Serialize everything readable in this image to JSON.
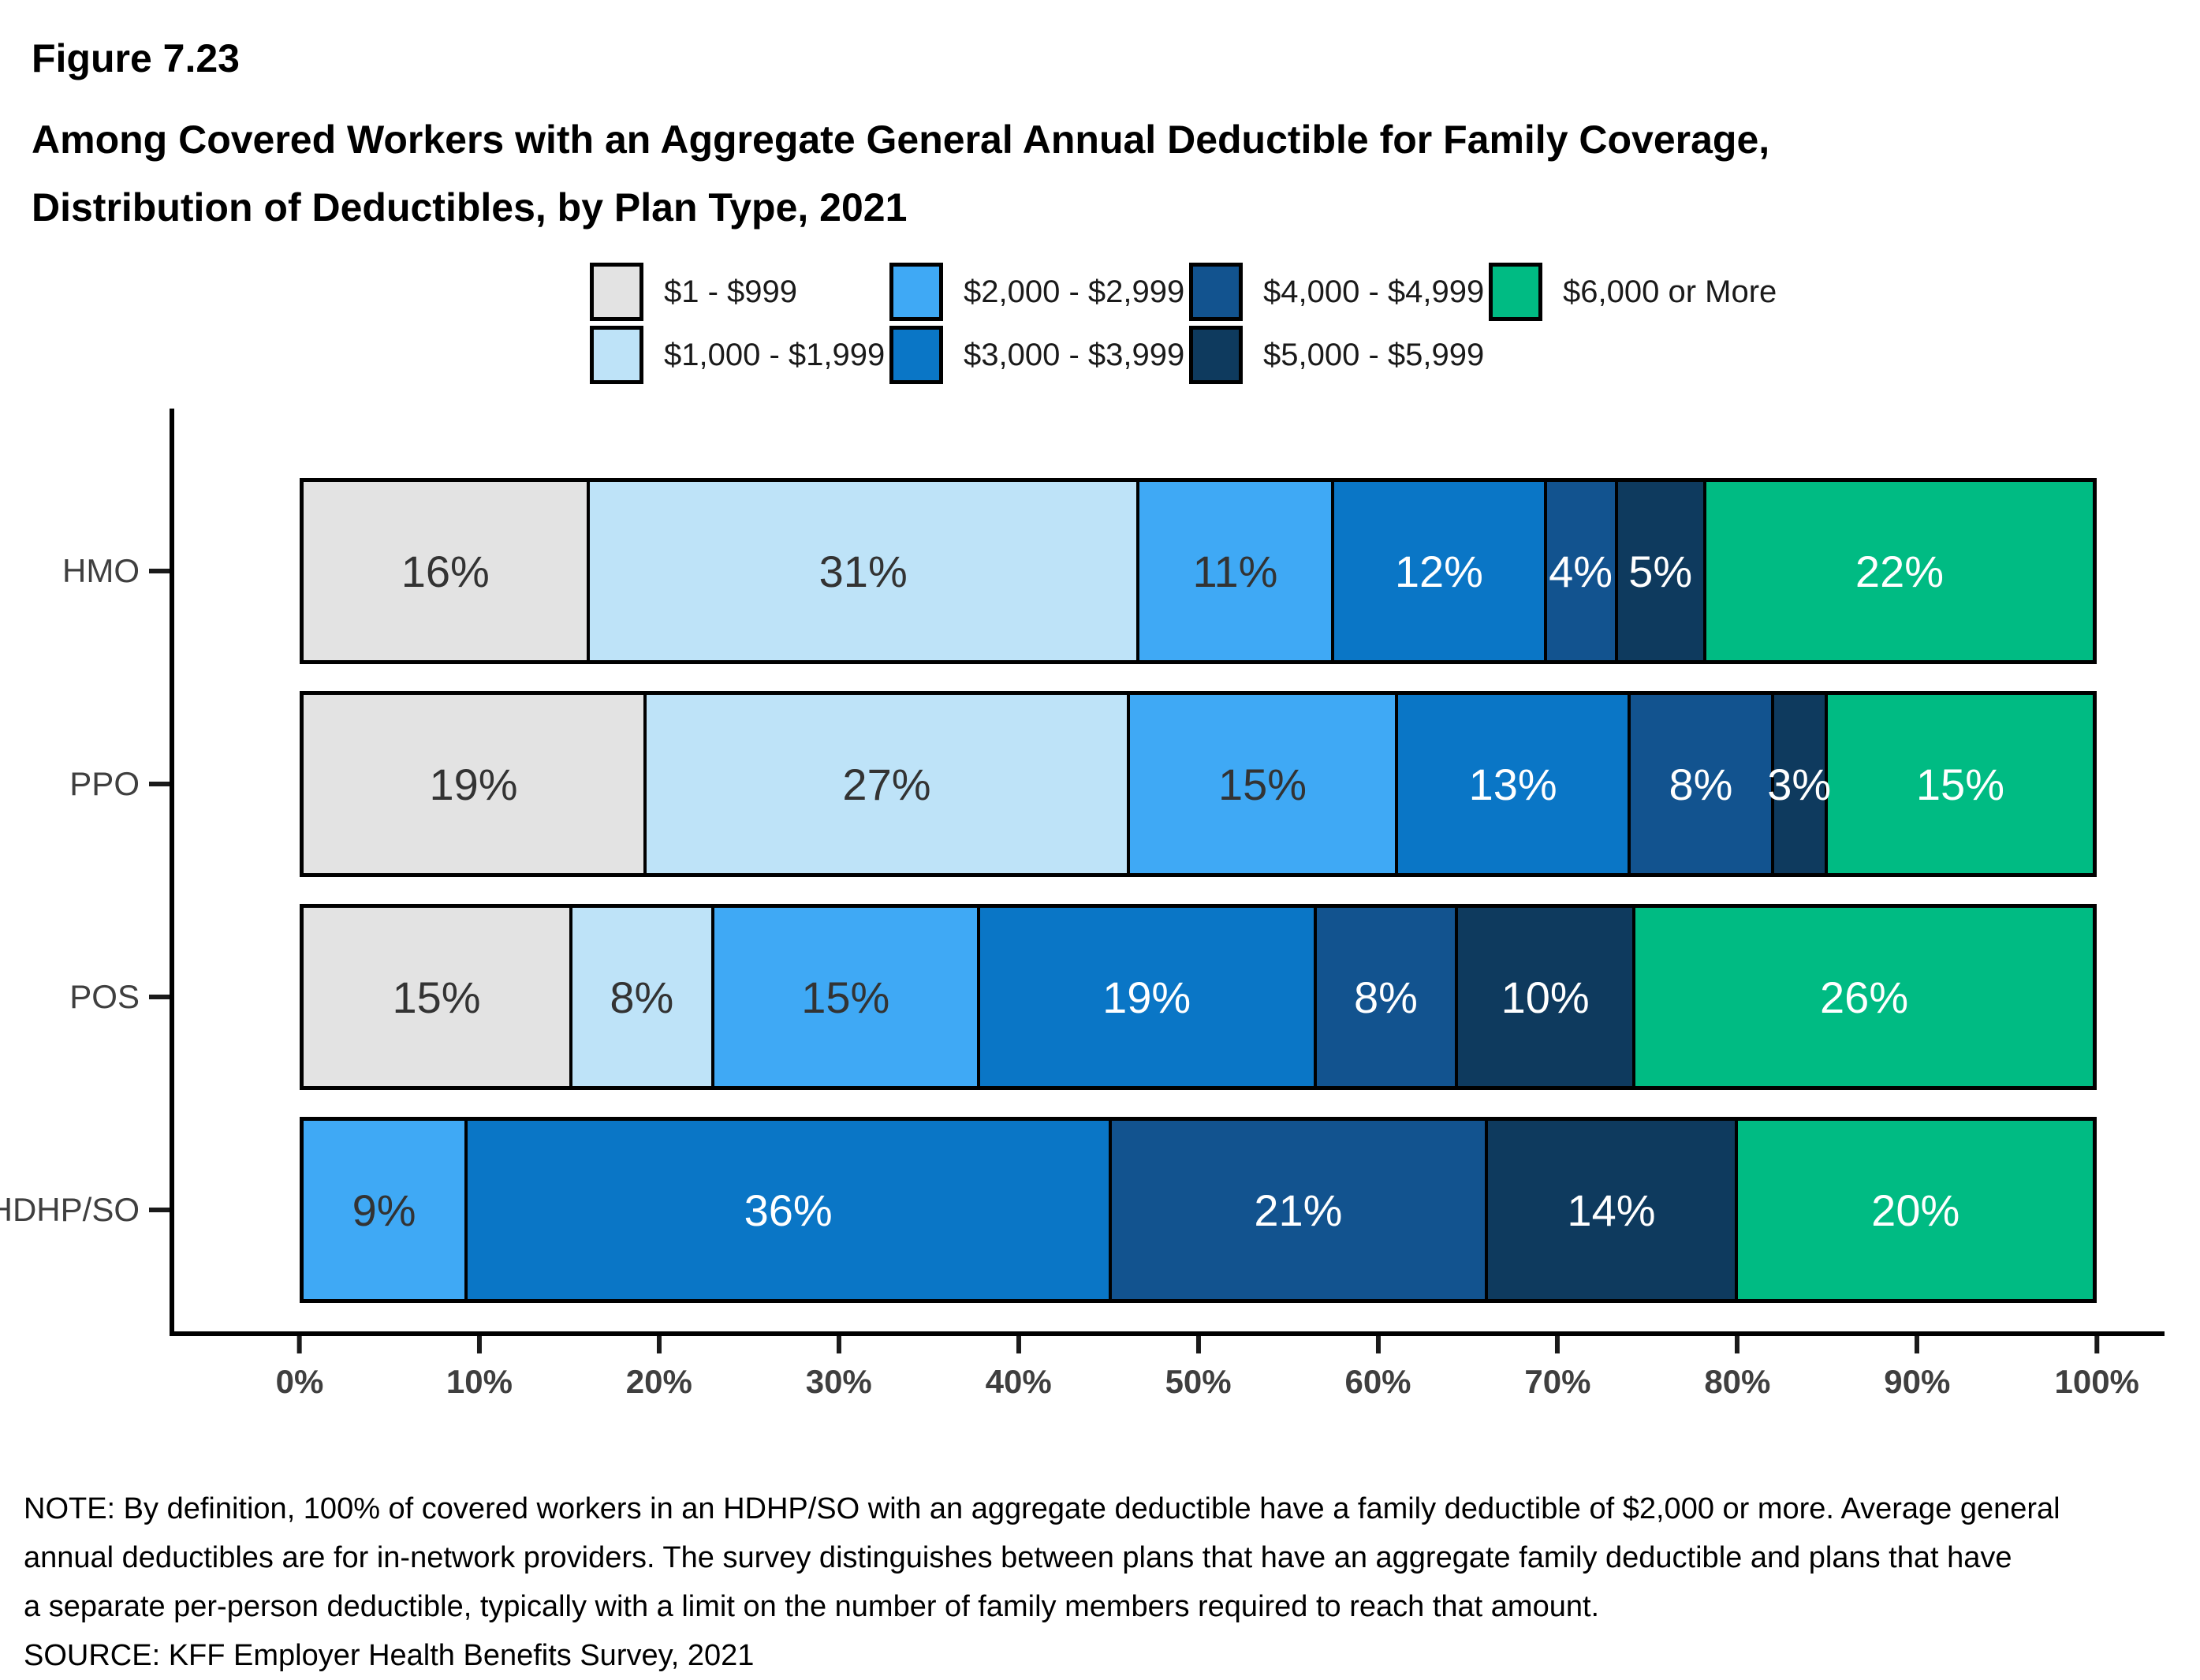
{
  "title": {
    "figure_label": "Figure 7.23",
    "line1": "Among Covered Workers with an Aggregate General Annual Deductible for Family Coverage,",
    "line2": "Distribution of Deductibles, by Plan Type, 2021"
  },
  "legend": {
    "items": [
      {
        "label": "$1 - $999",
        "color": "#E3E3E3"
      },
      {
        "label": "$1,000 - $1,999",
        "color": "#BEE3F8"
      },
      {
        "label": "$2,000 - $2,999",
        "color": "#3FA9F5"
      },
      {
        "label": "$3,000 - $3,999",
        "color": "#0A76C6"
      },
      {
        "label": "$4,000 - $4,999",
        "color": "#12538F"
      },
      {
        "label": "$5,000 - $5,999",
        "color": "#0E3A5E"
      },
      {
        "label": "$6,000 or More",
        "color": "#00BB83"
      }
    ]
  },
  "chart_data": {
    "type": "bar",
    "stacked": true,
    "orientation": "horizontal",
    "title": "Among Covered Workers with an Aggregate General Annual Deductible for Family Coverage, Distribution of Deductibles, by Plan Type, 2021",
    "categories": [
      "HMO",
      "PPO",
      "POS",
      "HDHP/SO"
    ],
    "series": [
      {
        "name": "$1 - $999",
        "color": "#E3E3E3",
        "text_color": "#333333",
        "values": [
          16,
          19,
          15,
          0
        ]
      },
      {
        "name": "$1,000 - $1,999",
        "color": "#BEE3F8",
        "text_color": "#333333",
        "values": [
          31,
          27,
          8,
          0
        ]
      },
      {
        "name": "$2,000 - $2,999",
        "color": "#3FA9F5",
        "text_color": "#333333",
        "values": [
          11,
          15,
          15,
          9
        ]
      },
      {
        "name": "$3,000 - $3,999",
        "color": "#0A76C6",
        "text_color": "#FFFFFF",
        "values": [
          12,
          13,
          19,
          36
        ]
      },
      {
        "name": "$4,000 - $4,999",
        "color": "#12538F",
        "text_color": "#FFFFFF",
        "values": [
          4,
          8,
          8,
          21
        ]
      },
      {
        "name": "$5,000 - $5,999",
        "color": "#0E3A5E",
        "text_color": "#FFFFFF",
        "values": [
          5,
          3,
          10,
          14
        ]
      },
      {
        "name": "$6,000 or More",
        "color": "#00BB83",
        "text_color": "#FFFFFF",
        "values": [
          22,
          15,
          26,
          20
        ]
      }
    ],
    "value_suffix": "%",
    "x_ticks": [
      "0%",
      "10%",
      "20%",
      "30%",
      "40%",
      "50%",
      "60%",
      "70%",
      "80%",
      "90%",
      "100%"
    ],
    "xlim": [
      0,
      100
    ],
    "legend_position": "top",
    "grid": false
  },
  "notes": {
    "lines": [
      "NOTE: By definition, 100% of covered workers in an HDHP/SO with an aggregate deductible have a family deductible of $2,000 or more. Average general",
      "annual deductibles are for in-network providers. The survey distinguishes between plans that have an aggregate family deductible and plans that have",
      "a separate per-person deductible, typically with a limit on the number of family members required to reach that amount."
    ],
    "source": "SOURCE: KFF Employer Health Benefits Survey, 2021"
  }
}
